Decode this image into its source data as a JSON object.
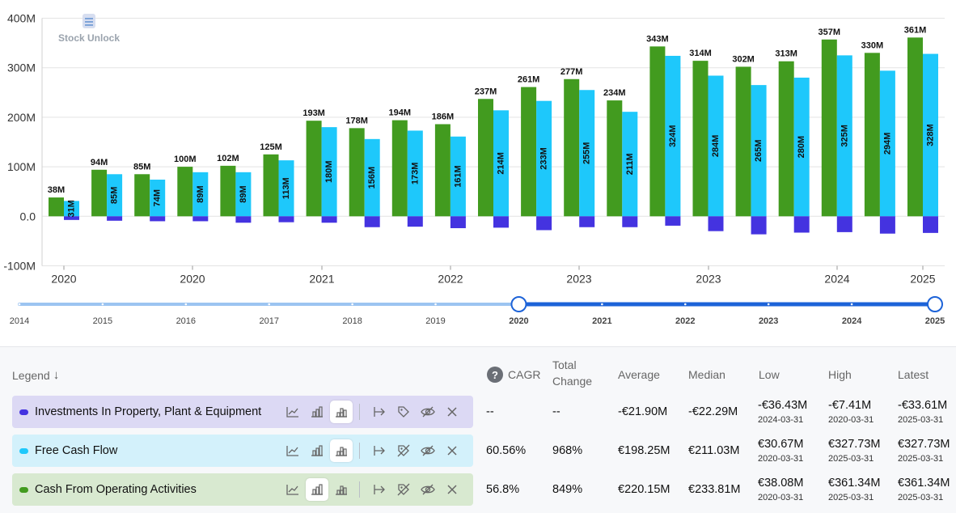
{
  "chart_data": {
    "type": "bar",
    "watermark": "Stock Unlock",
    "y_axis": {
      "ticks": [
        "400M",
        "300M",
        "200M",
        "100M",
        "0.0",
        "-100M"
      ],
      "ylim": [
        -100,
        400
      ],
      "unit": "M"
    },
    "x_axis": {
      "ticks": [
        "2020",
        "2020",
        "2021",
        "2022",
        "2023",
        "2023",
        "2024",
        "2025"
      ]
    },
    "series": [
      {
        "name": "Cash From Operating Activities",
        "color": "#429b1f",
        "values": [
          38,
          94,
          85,
          100,
          102,
          125,
          193,
          178,
          194,
          186,
          237,
          261,
          277,
          234,
          343,
          314,
          302,
          313,
          357,
          330,
          361
        ],
        "labels": [
          "38M",
          "94M",
          "85M",
          "100M",
          "102M",
          "125M",
          "193M",
          "178M",
          "194M",
          "186M",
          "237M",
          "261M",
          "277M",
          "234M",
          "343M",
          "314M",
          "302M",
          "313M",
          "357M",
          "330M",
          "361M"
        ]
      },
      {
        "name": "Free Cash Flow",
        "color": "#1ec8fb",
        "values": [
          31,
          85,
          74,
          89,
          89,
          113,
          180,
          156,
          173,
          161,
          214,
          233,
          255,
          211,
          324,
          284,
          265,
          280,
          325,
          294,
          328
        ],
        "labels": [
          "31M",
          "85M",
          "74M",
          "89M",
          "89M",
          "113M",
          "180M",
          "156M",
          "173M",
          "161M",
          "214M",
          "233M",
          "255M",
          "211M",
          "324M",
          "284M",
          "265M",
          "280M",
          "325M",
          "294M",
          "328M"
        ]
      },
      {
        "name": "Investments In Property, Plant & Equipment",
        "color": "#4433e0",
        "values": [
          -7.41,
          -9,
          -10,
          -10,
          -13,
          -12,
          -13,
          -22,
          -21,
          -24,
          -23,
          -28,
          -22,
          -22,
          -19,
          -30,
          -36.43,
          -33,
          -32,
          -35,
          -33.61
        ]
      }
    ],
    "slider": {
      "years": [
        "2014",
        "2015",
        "2016",
        "2017",
        "2018",
        "2019",
        "2020",
        "2021",
        "2022",
        "2023",
        "2024",
        "2025"
      ],
      "selected_start": "2020",
      "selected_end": "2025"
    }
  },
  "legend": {
    "header": {
      "legend": "Legend",
      "sort_arrow": "↓",
      "help": "?",
      "cagr": "CAGR",
      "total_line1": "Total",
      "total_line2": "Change",
      "average": "Average",
      "median": "Median",
      "low": "Low",
      "high": "High",
      "latest": "Latest"
    },
    "rows": [
      {
        "name": "Investments In Property, Plant & Equipment",
        "color": "#4433e0",
        "bg": "#dcd9f4",
        "active_icon": "stacked-bar-icon",
        "cagr": "--",
        "total": "--",
        "average": "-€21.90M",
        "median": "-€22.29M",
        "low": "-€36.43M",
        "low_date": "2024-03-31",
        "high": "-€7.41M",
        "high_date": "2020-03-31",
        "latest": "-€33.61M",
        "latest_date": "2025-03-31"
      },
      {
        "name": "Free Cash Flow",
        "color": "#1ec8fb",
        "bg": "#d3f1fb",
        "active_icon": "stacked-bar-icon",
        "cagr": "60.56%",
        "total": "968%",
        "average": "€198.25M",
        "median": "€211.03M",
        "low": "€30.67M",
        "low_date": "2020-03-31",
        "high": "€327.73M",
        "high_date": "2025-03-31",
        "latest": "€327.73M",
        "latest_date": "2025-03-31"
      },
      {
        "name": "Cash From Operating Activities",
        "color": "#429b1f",
        "bg": "#d8e9d0",
        "active_icon": "bar-icon",
        "cagr": "56.8%",
        "total": "849%",
        "average": "€220.15M",
        "median": "€233.81M",
        "low": "€38.08M",
        "low_date": "2020-03-31",
        "high": "€361.34M",
        "high_date": "2025-03-31",
        "latest": "€361.34M",
        "latest_date": "2025-03-31"
      }
    ]
  }
}
